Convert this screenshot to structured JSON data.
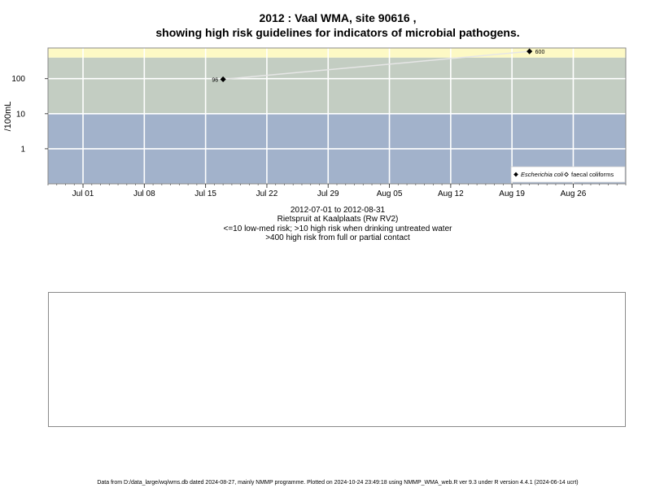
{
  "header": {
    "title_line1": "2012 : Vaal WMA, site 90616 ,",
    "title_line2": "showing high risk guidelines for indicators of microbial pathogens."
  },
  "captions": {
    "date_range": "2012-07-01 to 2012-08-31",
    "site": "Rietspruit at Kaalplaats (Rw RV2)",
    "guideline_1": "<=10 low-med risk; >10 high risk when drinking untreated water",
    "guideline_2": ">400 high risk from full or partial contact"
  },
  "footer": {
    "text": "Data from D:/data_large/wq/wms.db dated 2024-08-27, mainly NMMP programme. Plotted on 2024-10-24 23:49:18 using NMMP_WMA_web.R ver 9.3 under R version 4.4.1 (2024-06-14 ucrt)"
  },
  "chart_data": {
    "type": "scatter",
    "title": "2012 : Vaal WMA, site 90616 ,",
    "subtitle": "showing high risk guidelines for indicators of microbial pathogens.",
    "xlabel": "2012-07-01 to 2012-08-31",
    "ylabel": "/100mL",
    "y_scale": "log10",
    "xlim": [
      "2012-06-27",
      "2012-09-01"
    ],
    "ylim": [
      0.1,
      750
    ],
    "x_ticks": [
      {
        "date": "2012-07-01",
        "label": "Jul 01"
      },
      {
        "date": "2012-07-08",
        "label": "Jul 08"
      },
      {
        "date": "2012-07-15",
        "label": "Jul 15"
      },
      {
        "date": "2012-07-22",
        "label": "Jul 22"
      },
      {
        "date": "2012-07-29",
        "label": "Jul 29"
      },
      {
        "date": "2012-08-05",
        "label": "Aug 05"
      },
      {
        "date": "2012-08-12",
        "label": "Aug 12"
      },
      {
        "date": "2012-08-19",
        "label": "Aug 19"
      },
      {
        "date": "2012-08-26",
        "label": "Aug 26"
      }
    ],
    "y_ticks": [
      {
        "value": 1,
        "label": "1"
      },
      {
        "value": 10,
        "label": "10"
      },
      {
        "value": 100,
        "label": "100"
      }
    ],
    "grid": true,
    "risk_bands": [
      {
        "from": 0.1,
        "to": 10,
        "color": "#a2b2cb"
      },
      {
        "from": 10,
        "to": 400,
        "color": "#c3cdc2"
      },
      {
        "from": 400,
        "to": 750,
        "color": "#fdf9c5"
      }
    ],
    "series": [
      {
        "name": "Escherichia coli",
        "marker": "filled-diamond",
        "color": "#000000",
        "line_color": "#e6e6e6",
        "points": [
          {
            "x": "2012-07-17",
            "y": 96,
            "label": "96"
          },
          {
            "x": "2012-08-21",
            "y": 600,
            "label": "600"
          }
        ]
      },
      {
        "name": "faecal coliforms",
        "marker": "open-diamond",
        "color": "#000000",
        "points": []
      }
    ],
    "legend_position": "bottom-right"
  }
}
